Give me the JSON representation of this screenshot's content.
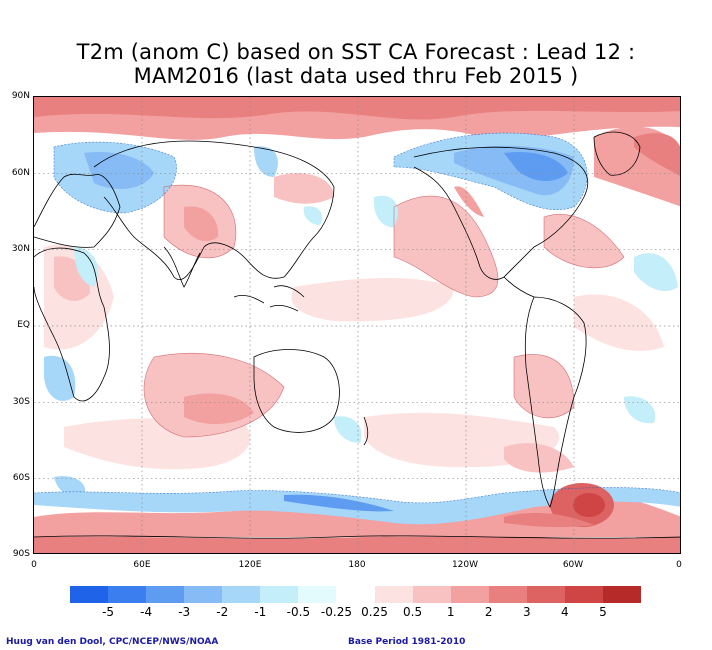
{
  "title": {
    "line1": "T2m (anom C) based on SST CA Forecast : Lead 12 :",
    "line2": "MAM2016 (last data used thru Feb 2015 )"
  },
  "axes": {
    "lat_labels": [
      "90N",
      "60N",
      "30N",
      "EQ",
      "30S",
      "60S",
      "90S"
    ],
    "lon_labels": [
      "0",
      "60E",
      "120E",
      "180",
      "120W",
      "60W",
      "0"
    ]
  },
  "colorbar": {
    "colors": [
      "#1f63e8",
      "#3b7ef0",
      "#5e9cf2",
      "#86bbf5",
      "#a6d6f8",
      "#c4eefa",
      "#e4fbfd",
      "#ffffff",
      "#fde2e2",
      "#f8c2c2",
      "#f2a0a0",
      "#e98080",
      "#dd6262",
      "#cf4444",
      "#b72a2a"
    ],
    "labels": [
      "-5",
      "-4",
      "-3",
      "-2",
      "-1",
      "-0.5",
      "-0.25",
      "0.25",
      "0.5",
      "1",
      "2",
      "3",
      "4",
      "5"
    ]
  },
  "credits": {
    "left": "Huug van den Dool, CPC/NCEP/NWS/NOAA",
    "right": "Base Period 1981-2010"
  },
  "map": {
    "projection": "cylindrical equidistant, 0 to 360 longitude",
    "variable": "2m temperature anomaly (C)",
    "grid": "dotted, every 30 degrees"
  }
}
